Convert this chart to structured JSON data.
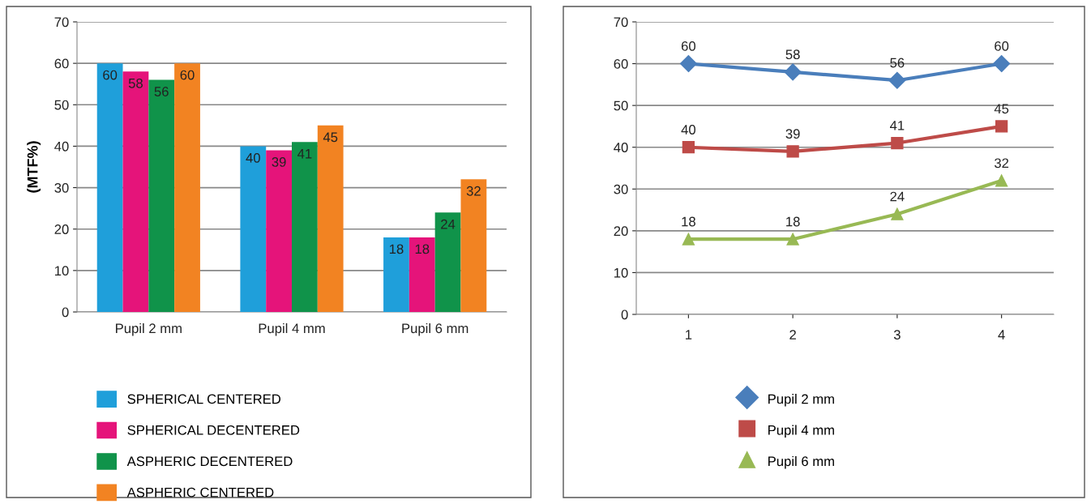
{
  "chart_data": [
    {
      "type": "bar",
      "ylabel": "(MTF%)",
      "categories": [
        "Pupil 2 mm",
        "Pupil 4 mm",
        "Pupil 6 mm"
      ],
      "ylim": [
        0,
        70
      ],
      "yticks": [
        0,
        10,
        20,
        30,
        40,
        50,
        60,
        70
      ],
      "grid": "y",
      "legend": "bottom left",
      "data_labels": true,
      "series": [
        {
          "name": "SPHERICAL CENTERED",
          "color": "#1f9fda",
          "values": [
            60,
            40,
            18
          ]
        },
        {
          "name": "SPHERICAL DECENTERED",
          "color": "#e5147a",
          "values": [
            58,
            39,
            18
          ]
        },
        {
          "name": "ASPHERIC DECENTERED",
          "color": "#10934a",
          "values": [
            56,
            41,
            24
          ]
        },
        {
          "name": "ASPHERIC CENTERED",
          "color": "#f28322",
          "values": [
            60,
            45,
            32
          ]
        }
      ]
    },
    {
      "type": "line",
      "x": [
        1,
        2,
        3,
        4
      ],
      "xlim": [
        0.5,
        4.5
      ],
      "xticks": [
        1,
        2,
        3,
        4
      ],
      "ylim": [
        0,
        70
      ],
      "yticks": [
        0,
        10,
        20,
        30,
        40,
        50,
        60,
        70
      ],
      "grid": "y",
      "legend": "bottom left",
      "data_labels": true,
      "line_style": "solid",
      "series": [
        {
          "name": "Pupil 2 mm",
          "color": "#4a7ebb",
          "marker": "diamond",
          "values": [
            60,
            58,
            56,
            60
          ]
        },
        {
          "name": "Pupil 4 mm",
          "color": "#be4b48",
          "marker": "square",
          "values": [
            40,
            39,
            41,
            45
          ]
        },
        {
          "name": "Pupil 6 mm",
          "color": "#98b954",
          "marker": "triangle",
          "values": [
            18,
            18,
            24,
            32
          ]
        }
      ]
    }
  ]
}
